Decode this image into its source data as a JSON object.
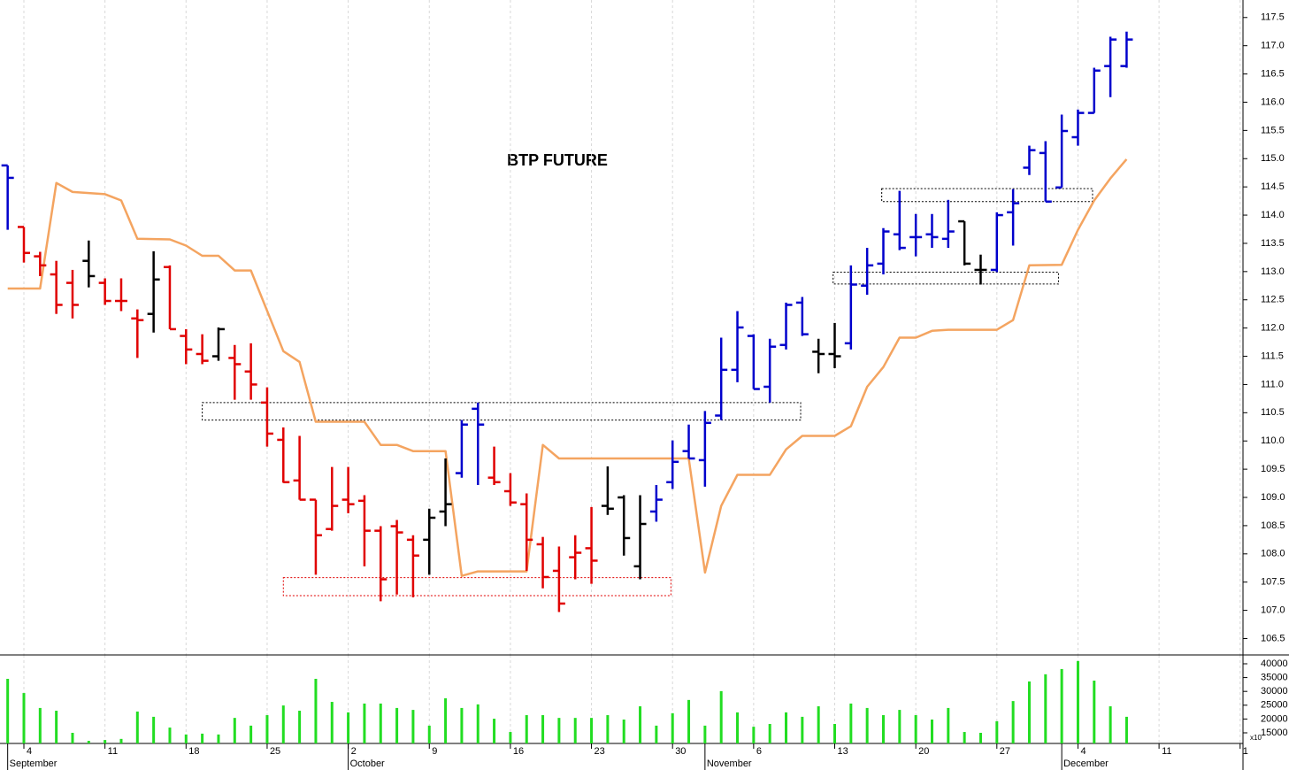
{
  "chart_data": [
    {
      "type": "ohlc",
      "title": "BTP FUTURE",
      "x": [
        -1,
        0,
        1,
        2,
        3,
        4,
        5,
        6,
        7,
        8,
        9,
        10,
        11,
        12,
        13,
        14,
        15,
        16,
        17,
        18,
        19,
        20,
        21,
        22,
        23,
        24,
        25,
        26,
        27,
        28,
        29,
        30,
        31,
        32,
        33,
        34,
        35,
        36,
        37,
        38,
        39,
        40,
        41,
        42,
        43,
        44,
        45,
        46,
        47,
        48,
        49,
        50,
        51,
        52,
        53,
        54,
        55,
        56,
        57,
        58,
        59,
        60,
        61,
        62,
        63,
        64,
        65,
        66,
        67,
        68
      ],
      "open": [
        114.88,
        113.79,
        113.27,
        112.95,
        112.8,
        113.19,
        112.8,
        112.48,
        112.17,
        112.25,
        113.08,
        111.86,
        111.54,
        111.5,
        111.47,
        111.23,
        110.68,
        110.02,
        109.3,
        108.96,
        108.44,
        108.96,
        108.94,
        108.41,
        108.49,
        108.25,
        108.25,
        108.75,
        109.43,
        110.57,
        109.35,
        109.11,
        108.88,
        108.17,
        107.7,
        107.94,
        108.1,
        108.85,
        109.0,
        107.78,
        108.75,
        109.27,
        109.82,
        109.66,
        110.45,
        111.26,
        111.86,
        110.96,
        111.7,
        112.45,
        111.58,
        111.54,
        111.73,
        112.75,
        113.14,
        113.66,
        113.61,
        113.66,
        113.58,
        113.89,
        113.03,
        113.03,
        114.05,
        114.84,
        115.1,
        114.49,
        115.38,
        115.81,
        116.64,
        116.64
      ],
      "high": [
        114.88,
        113.79,
        113.35,
        113.19,
        113.03,
        113.55,
        112.88,
        112.88,
        112.33,
        113.36,
        113.11,
        111.98,
        111.89,
        112.01,
        111.7,
        111.73,
        110.95,
        110.24,
        110.09,
        108.96,
        109.54,
        109.54,
        109.04,
        108.49,
        108.6,
        108.33,
        108.8,
        109.69,
        110.37,
        110.68,
        109.9,
        109.43,
        109.07,
        108.3,
        108.13,
        108.33,
        108.83,
        109.55,
        109.04,
        109.04,
        109.22,
        110.01,
        110.29,
        110.53,
        111.83,
        112.3,
        111.89,
        111.81,
        112.45,
        112.55,
        111.81,
        112.09,
        113.11,
        113.42,
        113.77,
        114.43,
        114.02,
        114.02,
        114.27,
        113.89,
        113.3,
        114.05,
        114.46,
        115.23,
        115.31,
        115.78,
        115.87,
        116.61,
        117.16,
        117.25
      ],
      "low": [
        113.74,
        113.16,
        112.92,
        112.25,
        112.17,
        112.72,
        112.41,
        112.3,
        111.47,
        111.92,
        111.98,
        111.36,
        111.36,
        111.42,
        110.73,
        110.73,
        109.9,
        109.26,
        108.96,
        107.63,
        108.41,
        108.72,
        107.78,
        107.16,
        107.28,
        107.23,
        107.63,
        108.49,
        109.35,
        109.22,
        109.22,
        108.85,
        107.7,
        107.39,
        106.97,
        107.55,
        107.47,
        108.69,
        107.97,
        107.55,
        108.57,
        109.15,
        109.69,
        109.19,
        110.37,
        111.04,
        110.92,
        110.68,
        111.62,
        111.86,
        111.2,
        111.29,
        111.62,
        112.59,
        112.95,
        113.38,
        113.27,
        113.42,
        113.42,
        113.11,
        112.77,
        112.99,
        113.46,
        114.71,
        114.24,
        114.49,
        115.23,
        115.81,
        116.09,
        116.61
      ],
      "close": [
        114.66,
        113.33,
        113.11,
        112.41,
        112.41,
        112.92,
        112.48,
        112.48,
        112.14,
        112.86,
        111.98,
        111.62,
        111.42,
        111.98,
        111.36,
        111.0,
        110.13,
        109.27,
        108.96,
        108.33,
        108.85,
        108.88,
        108.41,
        107.55,
        108.38,
        107.97,
        108.64,
        108.88,
        110.29,
        110.29,
        109.27,
        108.91,
        108.25,
        107.59,
        107.12,
        108.02,
        107.88,
        108.8,
        108.28,
        108.53,
        108.96,
        109.63,
        109.69,
        110.32,
        111.26,
        112.01,
        110.92,
        111.67,
        112.41,
        111.89,
        111.54,
        111.5,
        112.77,
        113.11,
        113.71,
        113.42,
        113.61,
        113.61,
        113.71,
        113.14,
        113.03,
        114.0,
        114.21,
        115.15,
        114.24,
        115.49,
        115.81,
        116.56,
        117.11,
        117.11
      ],
      "colors": [
        "#0000cc",
        "#e00000",
        "#e00000",
        "#e00000",
        "#e00000",
        "#000000",
        "#e00000",
        "#e00000",
        "#e00000",
        "#000000",
        "#e00000",
        "#e00000",
        "#e00000",
        "#000000",
        "#e00000",
        "#e00000",
        "#e00000",
        "#e00000",
        "#e00000",
        "#e00000",
        "#e00000",
        "#e00000",
        "#e00000",
        "#e00000",
        "#e00000",
        "#e00000",
        "#000000",
        "#000000",
        "#0000cc",
        "#0000cc",
        "#e00000",
        "#e00000",
        "#e00000",
        "#e00000",
        "#e00000",
        "#e00000",
        "#e00000",
        "#000000",
        "#000000",
        "#000000",
        "#0000cc",
        "#0000cc",
        "#0000cc",
        "#0000cc",
        "#0000cc",
        "#0000cc",
        "#0000cc",
        "#0000cc",
        "#0000cc",
        "#0000cc",
        "#000000",
        "#000000",
        "#0000cc",
        "#0000cc",
        "#0000cc",
        "#0000cc",
        "#0000cc",
        "#0000cc",
        "#0000cc",
        "#000000",
        "#000000",
        "#0000cc",
        "#0000cc",
        "#0000cc",
        "#0000cc",
        "#0000cc",
        "#0000cc",
        "#0000cc",
        "#0000cc",
        "#0000cc"
      ],
      "line": {
        "color": "#f4a460",
        "x": [
          -1,
          1,
          2,
          3,
          5,
          6,
          7,
          9,
          10,
          11,
          12,
          13,
          14,
          16,
          17,
          18,
          21,
          22,
          23,
          24,
          26,
          27,
          28,
          31,
          32,
          33,
          41,
          42,
          43,
          44,
          46,
          47,
          48,
          50,
          51,
          52,
          53,
          54,
          55,
          56,
          57,
          60,
          61,
          62,
          64,
          65,
          66,
          67,
          68
        ],
        "values": [
          112.7,
          112.7,
          114.57,
          114.41,
          114.37,
          114.26,
          113.58,
          113.57,
          113.46,
          113.28,
          113.28,
          113.02,
          113.02,
          111.59,
          111.4,
          110.34,
          110.34,
          109.93,
          109.93,
          109.82,
          109.82,
          107.61,
          107.69,
          107.69,
          109.93,
          109.69,
          109.69,
          107.67,
          108.85,
          109.4,
          109.4,
          109.85,
          110.09,
          110.09,
          110.26,
          110.96,
          111.31,
          111.83,
          111.83,
          111.95,
          111.97,
          111.97,
          112.14,
          113.11,
          113.12,
          113.74,
          114.26,
          114.65,
          114.99
        ]
      },
      "zones": [
        {
          "x": [
            11.0,
            47.9
          ],
          "y": [
            110.68,
            110.37
          ],
          "color": "#000000"
        },
        {
          "x": [
            16.0,
            39.9
          ],
          "y": [
            107.58,
            107.26
          ],
          "color": "#e00000"
        },
        {
          "x": [
            49.9,
            63.8
          ],
          "y": [
            112.99,
            112.78
          ],
          "color": "#000000"
        },
        {
          "x": [
            52.9,
            65.9
          ],
          "y": [
            114.47,
            114.24
          ],
          "color": "#000000"
        }
      ],
      "xlim": [
        -1.473,
        75.177
      ],
      "ylim": [
        106.21,
        117.81
      ],
      "yticks": [
        106.5,
        {
          "value": 107,
          "label": "107.0"
        },
        107.5,
        {
          "value": 108,
          "label": "108.0"
        },
        108.5,
        {
          "value": 109,
          "label": "109.0"
        },
        109.5,
        {
          "value": 110,
          "label": "110.0"
        },
        110.5,
        {
          "value": 111,
          "label": "111.0"
        },
        111.5,
        {
          "value": 112,
          "label": "112.0"
        },
        112.5,
        {
          "value": 113,
          "label": "113.0"
        },
        113.5,
        {
          "value": 114,
          "label": "114.0"
        },
        114.5,
        {
          "value": 115,
          "label": "115.0"
        },
        115.5,
        {
          "value": 116,
          "label": "116.0"
        },
        116.5,
        {
          "value": 117,
          "label": "117.0"
        },
        117.5
      ]
    },
    {
      "type": "bar",
      "color": "#22dd22",
      "note": "x10",
      "x": [
        -1,
        0,
        1,
        2,
        3,
        4,
        5,
        6,
        7,
        8,
        9,
        10,
        11,
        12,
        13,
        14,
        15,
        16,
        17,
        18,
        19,
        20,
        21,
        22,
        23,
        24,
        25,
        26,
        27,
        28,
        29,
        30,
        31,
        32,
        33,
        34,
        35,
        36,
        37,
        38,
        39,
        40,
        41,
        42,
        43,
        44,
        45,
        46,
        47,
        48,
        49,
        50,
        51,
        52,
        53,
        54,
        55,
        56,
        57,
        58,
        59,
        60,
        61,
        62,
        63,
        64,
        65,
        66,
        67,
        68
      ],
      "values": [
        34550,
        29400,
        24000,
        23000,
        15000,
        12100,
        12400,
        12800,
        22700,
        20800,
        16900,
        14400,
        14700,
        14400,
        20400,
        17600,
        21400,
        24900,
        23000,
        34550,
        26200,
        22400,
        25600,
        25600,
        24000,
        23300,
        17600,
        27500,
        24000,
        25300,
        20100,
        15300,
        21400,
        21400,
        20400,
        20400,
        20400,
        21400,
        19800,
        24600,
        17600,
        22100,
        26900,
        17600,
        30100,
        22400,
        17200,
        18200,
        22400,
        20800,
        24600,
        18200,
        25600,
        24000,
        21400,
        23300,
        21400,
        19800,
        24000,
        15300,
        15000,
        19200,
        26500,
        33600,
        36200,
        38100,
        41000,
        33900,
        24600,
        20800
      ],
      "xlim": [
        -1.473,
        75.177
      ],
      "ylim": [
        11150,
        43200
      ],
      "yticks": [
        15000,
        20000,
        25000,
        30000,
        35000,
        40000
      ],
      "xticks": [
        {
          "value": 0,
          "label": "4"
        },
        {
          "value": 5,
          "label": "11"
        },
        {
          "value": 10,
          "label": "18"
        },
        {
          "value": 15,
          "label": "25"
        },
        {
          "value": 20,
          "label": "2"
        },
        {
          "value": 25,
          "label": "9"
        },
        {
          "value": 30,
          "label": "16"
        },
        {
          "value": 35,
          "label": "23"
        },
        {
          "value": 40,
          "label": "30"
        },
        {
          "value": 45,
          "label": "6"
        },
        {
          "value": 50,
          "label": "13"
        },
        {
          "value": 55,
          "label": "20"
        },
        {
          "value": 60,
          "label": "27"
        },
        {
          "value": 65,
          "label": "4"
        },
        {
          "value": 70,
          "label": "11"
        },
        {
          "value": 75,
          "label": "1"
        }
      ],
      "months": [
        {
          "value": -1,
          "label": "September"
        },
        {
          "value": 20,
          "label": "October"
        },
        {
          "value": 42,
          "label": "November"
        },
        {
          "value": 64,
          "label": "December"
        }
      ]
    }
  ]
}
